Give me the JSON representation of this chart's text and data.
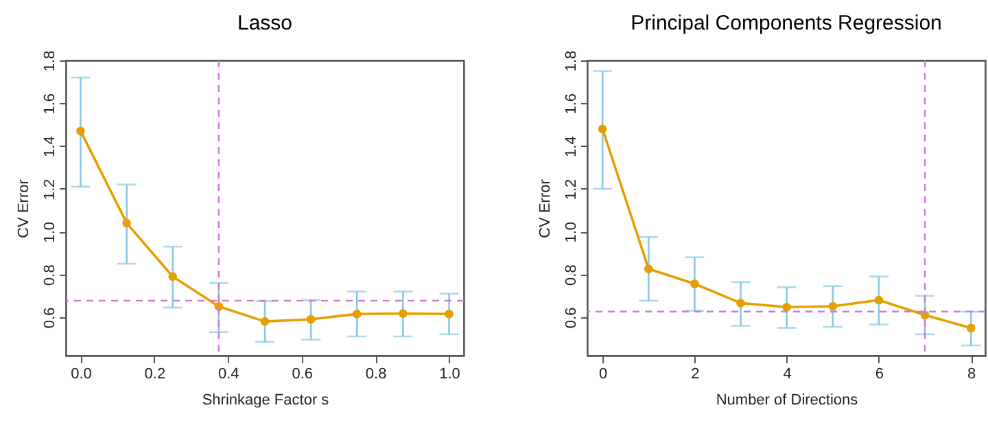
{
  "chart_data": [
    {
      "type": "line",
      "title": "Lasso",
      "xlabel": "Shrinkage Factor s",
      "ylabel": "CV Error",
      "marker": "circle",
      "x": [
        0,
        0.125,
        0.25,
        0.375,
        0.5,
        0.625,
        0.75,
        0.875,
        1.0
      ],
      "series": [
        {
          "color": "#e69f00",
          "values": [
            1.47,
            1.04,
            0.79,
            0.65,
            0.58,
            0.59,
            0.615,
            0.617,
            0.615
          ],
          "errors": [
            [
              1.21,
              1.72
            ],
            [
              0.85,
              1.22
            ],
            [
              0.645,
              0.93
            ],
            [
              0.53,
              0.76
            ],
            [
              0.485,
              0.675
            ],
            [
              0.495,
              0.68
            ],
            [
              0.51,
              0.72
            ],
            [
              0.51,
              0.72
            ],
            [
              0.52,
              0.71
            ]
          ]
        }
      ],
      "xlim": [
        -0.04,
        1.04
      ],
      "ylim": [
        0.42,
        1.8
      ],
      "xticks": [
        {
          "value": 0,
          "label": "0.0"
        },
        0.2,
        0.4,
        0.6,
        0.8,
        {
          "value": 1,
          "label": "1.0"
        }
      ],
      "yticks": [
        0.6,
        0.8,
        {
          "value": 1,
          "label": "1.0"
        },
        1.2,
        1.4,
        1.6,
        1.8
      ],
      "ref_lines": [
        {
          "axis": "x",
          "value": 0.375,
          "color": "#cc79d8",
          "line_style": "dashed"
        },
        {
          "axis": "y",
          "value": 0.677,
          "color": "#cc79d8",
          "line_style": "dashed"
        }
      ]
    },
    {
      "type": "line",
      "title": "Principal Components Regression",
      "xlabel": "Number of Directions",
      "ylabel": "CV Error",
      "marker": "circle",
      "x": [
        0,
        1,
        2,
        3,
        4,
        5,
        6,
        7,
        8
      ],
      "series": [
        {
          "color": "#e69f00",
          "values": [
            1.48,
            0.826,
            0.756,
            0.666,
            0.647,
            0.651,
            0.68,
            0.61,
            0.549
          ],
          "errors": [
            [
              1.2,
              1.75
            ],
            [
              0.677,
              0.975
            ],
            [
              0.63,
              0.88
            ],
            [
              0.56,
              0.764
            ],
            [
              0.55,
              0.74
            ],
            [
              0.555,
              0.745
            ],
            [
              0.566,
              0.79
            ],
            [
              0.52,
              0.7
            ],
            [
              0.468,
              0.626
            ]
          ]
        }
      ],
      "xlim": [
        -0.33,
        8.31
      ],
      "ylim": [
        0.42,
        1.8
      ],
      "xticks": [
        0,
        2,
        4,
        6,
        8
      ],
      "yticks": [
        0.6,
        0.8,
        {
          "value": 1,
          "label": "1.0"
        },
        1.2,
        1.4,
        1.6,
        1.8
      ],
      "ref_lines": [
        {
          "axis": "x",
          "value": 7,
          "color": "#cc79d8",
          "line_style": "dashed"
        },
        {
          "axis": "y",
          "value": 0.626,
          "color": "#cc79d8",
          "line_style": "dashed"
        }
      ]
    }
  ]
}
